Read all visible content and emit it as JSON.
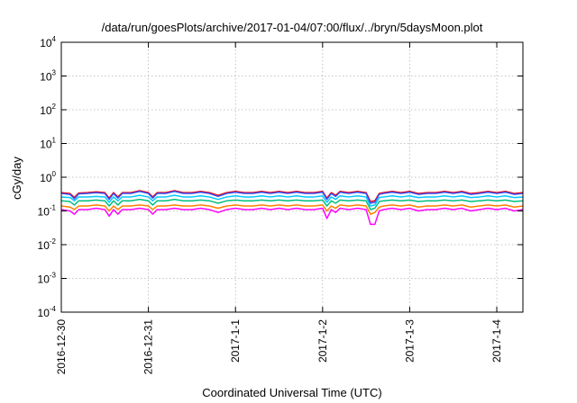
{
  "chart_data": {
    "type": "line",
    "title": "/data/run/goesPlots/archive/2017-01-04/07:00/flux/../bryn/5daysMoon.plot",
    "xlabel": "Coordinated Universal Time (UTC)",
    "ylabel": "cGy/day",
    "yscale": "log",
    "ylim": [
      0.0001,
      10000
    ],
    "xlim": [
      0,
      5.3
    ],
    "grid": true,
    "legend": "none",
    "y_ticks": [
      {
        "value": 0.0001,
        "base": "10",
        "exp": "-4"
      },
      {
        "value": 0.001,
        "base": "10",
        "exp": "-3"
      },
      {
        "value": 0.01,
        "base": "10",
        "exp": "-2"
      },
      {
        "value": 0.1,
        "base": "10",
        "exp": "-1"
      },
      {
        "value": 1,
        "base": "10",
        "exp": "0"
      },
      {
        "value": 10,
        "base": "10",
        "exp": "1"
      },
      {
        "value": 100,
        "base": "10",
        "exp": "2"
      },
      {
        "value": 1000,
        "base": "10",
        "exp": "3"
      },
      {
        "value": 10000,
        "base": "10",
        "exp": "4"
      }
    ],
    "x_ticks": [
      {
        "value": 0,
        "label": "2016-12-30"
      },
      {
        "value": 1,
        "label": "2016-12-31"
      },
      {
        "value": 2,
        "label": "2017-1-1"
      },
      {
        "value": 3,
        "label": "2017-1-2"
      },
      {
        "value": 4,
        "label": "2017-1-3"
      },
      {
        "value": 5,
        "label": "2017-1-4"
      }
    ],
    "series": [
      {
        "color": "#ff00ff",
        "base": 0.11,
        "x": [
          0,
          0.1,
          0.15,
          0.2,
          0.3,
          0.4,
          0.5,
          0.55,
          0.6,
          0.65,
          0.7,
          0.8,
          0.9,
          1.0,
          1.05,
          1.1,
          1.2,
          1.3,
          1.4,
          1.5,
          1.6,
          1.7,
          1.8,
          1.9,
          2.0,
          2.1,
          2.2,
          2.3,
          2.4,
          2.5,
          2.6,
          2.7,
          2.8,
          2.9,
          3.0,
          3.05,
          3.1,
          3.15,
          3.2,
          3.3,
          3.4,
          3.5,
          3.55,
          3.6,
          3.65,
          3.7,
          3.8,
          3.9,
          4.0,
          4.1,
          4.2,
          4.3,
          4.4,
          4.5,
          4.6,
          4.7,
          4.8,
          4.9,
          5.0,
          5.1,
          5.2,
          5.3
        ],
        "y": [
          0.11,
          0.1,
          0.08,
          0.11,
          0.11,
          0.12,
          0.11,
          0.07,
          0.11,
          0.08,
          0.11,
          0.11,
          0.12,
          0.11,
          0.08,
          0.11,
          0.11,
          0.12,
          0.11,
          0.11,
          0.12,
          0.11,
          0.09,
          0.11,
          0.12,
          0.11,
          0.11,
          0.12,
          0.11,
          0.12,
          0.11,
          0.12,
          0.11,
          0.11,
          0.12,
          0.06,
          0.11,
          0.09,
          0.12,
          0.11,
          0.12,
          0.11,
          0.04,
          0.04,
          0.1,
          0.11,
          0.12,
          0.11,
          0.12,
          0.1,
          0.11,
          0.11,
          0.12,
          0.11,
          0.12,
          0.1,
          0.11,
          0.12,
          0.11,
          0.12,
          0.1,
          0.11
        ]
      },
      {
        "color": "#ff8000",
        "base": 0.14,
        "x": [
          0,
          0.1,
          0.15,
          0.2,
          0.3,
          0.4,
          0.5,
          0.55,
          0.6,
          0.65,
          0.7,
          0.8,
          0.9,
          1.0,
          1.05,
          1.1,
          1.2,
          1.3,
          1.4,
          1.5,
          1.6,
          1.7,
          1.8,
          1.9,
          2.0,
          2.1,
          2.2,
          2.3,
          2.4,
          2.5,
          2.6,
          2.7,
          2.8,
          2.9,
          3.0,
          3.05,
          3.1,
          3.15,
          3.2,
          3.3,
          3.4,
          3.5,
          3.55,
          3.6,
          3.65,
          3.7,
          3.8,
          3.9,
          4.0,
          4.1,
          4.2,
          4.3,
          4.4,
          4.5,
          4.6,
          4.7,
          4.8,
          4.9,
          5.0,
          5.1,
          5.2,
          5.3
        ],
        "y": [
          0.14,
          0.13,
          0.11,
          0.14,
          0.14,
          0.15,
          0.14,
          0.1,
          0.14,
          0.11,
          0.14,
          0.14,
          0.15,
          0.14,
          0.11,
          0.14,
          0.14,
          0.15,
          0.14,
          0.14,
          0.15,
          0.14,
          0.12,
          0.14,
          0.15,
          0.14,
          0.14,
          0.15,
          0.14,
          0.15,
          0.14,
          0.15,
          0.14,
          0.14,
          0.15,
          0.1,
          0.14,
          0.12,
          0.15,
          0.14,
          0.15,
          0.14,
          0.08,
          0.09,
          0.13,
          0.14,
          0.15,
          0.14,
          0.15,
          0.13,
          0.14,
          0.14,
          0.15,
          0.14,
          0.15,
          0.13,
          0.14,
          0.15,
          0.14,
          0.15,
          0.13,
          0.14
        ]
      },
      {
        "color": "#00c080",
        "base": 0.2,
        "x": [
          0,
          0.1,
          0.15,
          0.2,
          0.3,
          0.4,
          0.5,
          0.55,
          0.6,
          0.65,
          0.7,
          0.8,
          0.9,
          1.0,
          1.05,
          1.1,
          1.2,
          1.3,
          1.4,
          1.5,
          1.6,
          1.7,
          1.8,
          1.9,
          2.0,
          2.1,
          2.2,
          2.3,
          2.4,
          2.5,
          2.6,
          2.7,
          2.8,
          2.9,
          3.0,
          3.05,
          3.1,
          3.15,
          3.2,
          3.3,
          3.4,
          3.5,
          3.55,
          3.6,
          3.65,
          3.7,
          3.8,
          3.9,
          4.0,
          4.1,
          4.2,
          4.3,
          4.4,
          4.5,
          4.6,
          4.7,
          4.8,
          4.9,
          5.0,
          5.1,
          5.2,
          5.3
        ],
        "y": [
          0.2,
          0.19,
          0.15,
          0.2,
          0.2,
          0.21,
          0.2,
          0.14,
          0.2,
          0.15,
          0.2,
          0.2,
          0.22,
          0.2,
          0.15,
          0.2,
          0.2,
          0.22,
          0.2,
          0.2,
          0.21,
          0.2,
          0.17,
          0.2,
          0.21,
          0.2,
          0.2,
          0.21,
          0.2,
          0.21,
          0.2,
          0.21,
          0.2,
          0.2,
          0.21,
          0.14,
          0.2,
          0.17,
          0.21,
          0.2,
          0.21,
          0.2,
          0.11,
          0.12,
          0.19,
          0.2,
          0.21,
          0.2,
          0.21,
          0.19,
          0.2,
          0.2,
          0.21,
          0.2,
          0.21,
          0.19,
          0.2,
          0.21,
          0.2,
          0.21,
          0.19,
          0.2
        ]
      },
      {
        "color": "#00c8ff",
        "base": 0.26,
        "x": [
          0,
          0.1,
          0.15,
          0.2,
          0.3,
          0.4,
          0.5,
          0.55,
          0.6,
          0.65,
          0.7,
          0.8,
          0.9,
          1.0,
          1.05,
          1.1,
          1.2,
          1.3,
          1.4,
          1.5,
          1.6,
          1.7,
          1.8,
          1.9,
          2.0,
          2.1,
          2.2,
          2.3,
          2.4,
          2.5,
          2.6,
          2.7,
          2.8,
          2.9,
          3.0,
          3.05,
          3.1,
          3.15,
          3.2,
          3.3,
          3.4,
          3.5,
          3.55,
          3.6,
          3.65,
          3.7,
          3.8,
          3.9,
          4.0,
          4.1,
          4.2,
          4.3,
          4.4,
          4.5,
          4.6,
          4.7,
          4.8,
          4.9,
          5.0,
          5.1,
          5.2,
          5.3
        ],
        "y": [
          0.26,
          0.25,
          0.2,
          0.26,
          0.26,
          0.27,
          0.26,
          0.18,
          0.26,
          0.2,
          0.26,
          0.26,
          0.29,
          0.26,
          0.2,
          0.26,
          0.26,
          0.29,
          0.26,
          0.26,
          0.28,
          0.26,
          0.22,
          0.26,
          0.28,
          0.26,
          0.26,
          0.28,
          0.26,
          0.28,
          0.26,
          0.28,
          0.26,
          0.26,
          0.28,
          0.18,
          0.26,
          0.22,
          0.28,
          0.26,
          0.28,
          0.26,
          0.14,
          0.15,
          0.25,
          0.26,
          0.28,
          0.26,
          0.28,
          0.25,
          0.26,
          0.26,
          0.28,
          0.26,
          0.28,
          0.25,
          0.26,
          0.28,
          0.26,
          0.28,
          0.25,
          0.26
        ]
      },
      {
        "color": "#ff0000",
        "base": 0.33,
        "x": [
          0,
          0.1,
          0.15,
          0.2,
          0.3,
          0.4,
          0.5,
          0.55,
          0.6,
          0.65,
          0.7,
          0.8,
          0.9,
          1.0,
          1.05,
          1.1,
          1.2,
          1.3,
          1.4,
          1.5,
          1.6,
          1.7,
          1.8,
          1.9,
          2.0,
          2.1,
          2.2,
          2.3,
          2.4,
          2.5,
          2.6,
          2.7,
          2.8,
          2.9,
          3.0,
          3.05,
          3.1,
          3.15,
          3.2,
          3.3,
          3.4,
          3.5,
          3.55,
          3.6,
          3.65,
          3.7,
          3.8,
          3.9,
          4.0,
          4.1,
          4.2,
          4.3,
          4.4,
          4.5,
          4.6,
          4.7,
          4.8,
          4.9,
          5.0,
          5.1,
          5.2,
          5.3
        ],
        "y": [
          0.35,
          0.33,
          0.25,
          0.34,
          0.35,
          0.37,
          0.35,
          0.24,
          0.35,
          0.26,
          0.35,
          0.35,
          0.4,
          0.35,
          0.26,
          0.35,
          0.35,
          0.4,
          0.35,
          0.35,
          0.38,
          0.35,
          0.29,
          0.35,
          0.38,
          0.35,
          0.35,
          0.38,
          0.35,
          0.38,
          0.35,
          0.38,
          0.35,
          0.35,
          0.38,
          0.24,
          0.35,
          0.29,
          0.38,
          0.35,
          0.38,
          0.35,
          0.19,
          0.2,
          0.33,
          0.35,
          0.38,
          0.35,
          0.38,
          0.33,
          0.35,
          0.35,
          0.38,
          0.35,
          0.38,
          0.33,
          0.35,
          0.38,
          0.35,
          0.38,
          0.33,
          0.35
        ]
      },
      {
        "color": "#3050ff",
        "base": 0.31,
        "x": [
          0,
          0.1,
          0.15,
          0.2,
          0.3,
          0.4,
          0.5,
          0.55,
          0.6,
          0.65,
          0.7,
          0.8,
          0.9,
          1.0,
          1.05,
          1.1,
          1.2,
          1.3,
          1.4,
          1.5,
          1.6,
          1.7,
          1.8,
          1.9,
          2.0,
          2.1,
          2.2,
          2.3,
          2.4,
          2.5,
          2.6,
          2.7,
          2.8,
          2.9,
          3.0,
          3.05,
          3.1,
          3.15,
          3.2,
          3.3,
          3.4,
          3.5,
          3.55,
          3.6,
          3.65,
          3.7,
          3.8,
          3.9,
          4.0,
          4.1,
          4.2,
          4.3,
          4.4,
          4.5,
          4.6,
          4.7,
          4.8,
          4.9,
          5.0,
          5.1,
          5.2,
          5.3
        ],
        "y": [
          0.33,
          0.31,
          0.23,
          0.32,
          0.33,
          0.35,
          0.33,
          0.22,
          0.33,
          0.24,
          0.33,
          0.33,
          0.38,
          0.33,
          0.24,
          0.33,
          0.33,
          0.38,
          0.33,
          0.33,
          0.36,
          0.33,
          0.27,
          0.33,
          0.36,
          0.33,
          0.33,
          0.36,
          0.33,
          0.36,
          0.33,
          0.36,
          0.33,
          0.33,
          0.36,
          0.22,
          0.33,
          0.27,
          0.36,
          0.33,
          0.36,
          0.33,
          0.17,
          0.18,
          0.31,
          0.33,
          0.36,
          0.33,
          0.36,
          0.31,
          0.33,
          0.33,
          0.36,
          0.33,
          0.36,
          0.31,
          0.33,
          0.36,
          0.33,
          0.36,
          0.31,
          0.33
        ]
      }
    ]
  }
}
